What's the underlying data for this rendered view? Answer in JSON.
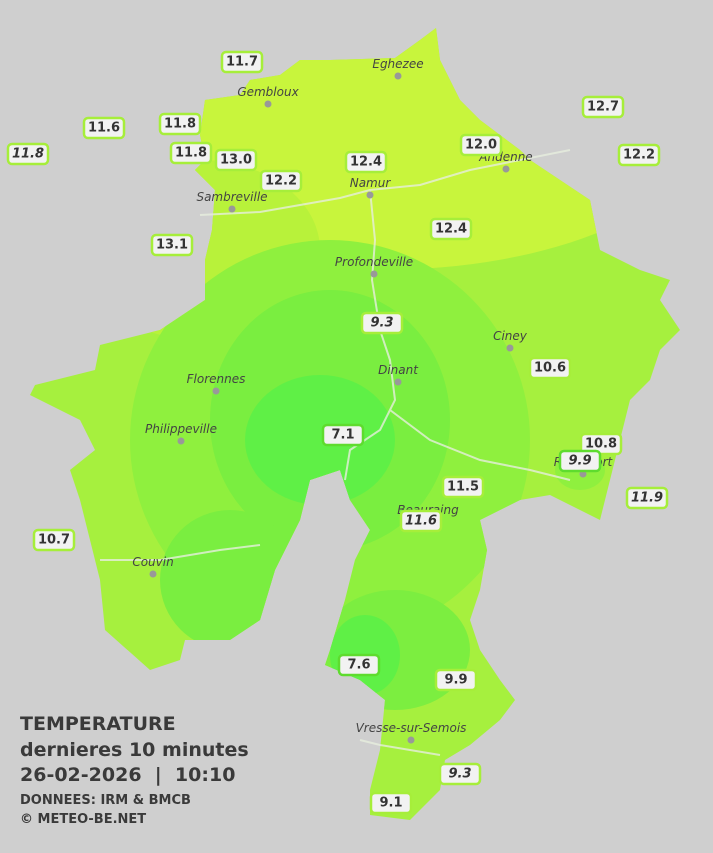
{
  "legend": {
    "title": "TEMPERATURE",
    "subtitle": "dernieres 10 minutes",
    "timestamp": "26-02-2026  |  10:10",
    "source": "DONNEES: IRM & BMCB",
    "copyright": "© METEO-BE.NET"
  },
  "cities": [
    "Eghezee",
    "Gembloux",
    "Andenne",
    "Namur",
    "Sambreville",
    "Profondeville",
    "Ciney",
    "Dinant",
    "Florennes",
    "Philippeville",
    "Rochefort",
    "Beauraing",
    "Couvin",
    "Vresse-sur-Semois"
  ],
  "stations": [
    "11.7",
    "11.6",
    "11.8",
    "11.8",
    "11.8",
    "13.0",
    "12.4",
    "12.0",
    "12.7",
    "12.2",
    "12.2",
    "12.4",
    "13.1",
    "9.3",
    "10.6",
    "7.1",
    "10.8",
    "9.9",
    "11.5",
    "11.9",
    "11.6",
    "10.7",
    "7.6",
    "9.9",
    "9.3",
    "9.1"
  ]
}
